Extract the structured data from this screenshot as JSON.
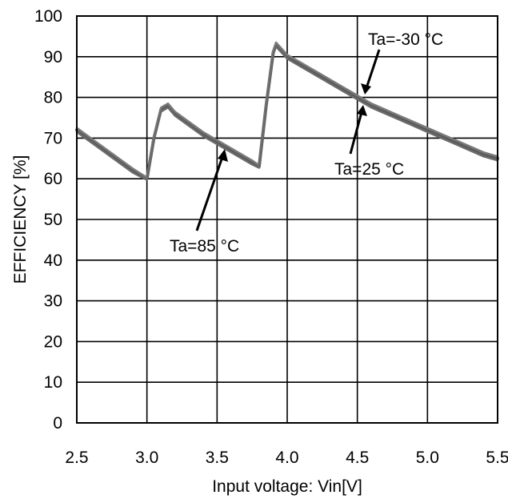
{
  "chart_data": {
    "type": "line",
    "title": "",
    "xlabel": "Input voltage: Vin[V]",
    "ylabel": "EFFICIENCY [%]",
    "xlim": [
      2.5,
      5.5
    ],
    "ylim": [
      0,
      100
    ],
    "xticks": [
      "2.5",
      "3.0",
      "3.5",
      "4.0",
      "4.5",
      "5.0",
      "5.5"
    ],
    "yticks": [
      "0",
      "10",
      "20",
      "30",
      "40",
      "50",
      "60",
      "70",
      "80",
      "90",
      "100"
    ],
    "grid": true,
    "line_color": "#6b6b6b",
    "series": [
      {
        "name": "Ta=-30 °C",
        "x": [
          2.5,
          2.7,
          2.9,
          3.0,
          3.05,
          3.1,
          3.15,
          3.2,
          3.4,
          3.6,
          3.75,
          3.8,
          3.85,
          3.9,
          3.92,
          4.0,
          4.2,
          4.4,
          4.6,
          4.8,
          5.0,
          5.2,
          5.4,
          5.5
        ],
        "y": [
          72,
          67,
          62,
          60,
          70,
          77,
          78,
          76,
          71,
          67,
          64,
          63,
          78,
          91,
          93,
          90,
          86,
          82,
          78,
          75,
          72,
          69,
          66,
          65
        ]
      },
      {
        "name": "Ta=25 °C",
        "x": [
          2.5,
          2.7,
          2.9,
          3.0,
          3.05,
          3.1,
          3.15,
          3.2,
          3.4,
          3.6,
          3.75,
          3.8,
          3.85,
          3.9,
          3.92,
          4.0,
          4.2,
          4.4,
          4.6,
          4.8,
          5.0,
          5.2,
          5.4,
          5.5
        ],
        "y": [
          72.5,
          67.5,
          62.5,
          60.3,
          70.5,
          77.5,
          78.5,
          76.5,
          71.5,
          67.5,
          64.5,
          63.3,
          78.5,
          91.5,
          93.5,
          90.5,
          86.5,
          82.5,
          78.5,
          75.5,
          72.5,
          69.5,
          66.5,
          65.5
        ]
      },
      {
        "name": "Ta=85 °C",
        "x": [
          2.5,
          2.7,
          2.9,
          3.0,
          3.05,
          3.1,
          3.15,
          3.2,
          3.4,
          3.6,
          3.75,
          3.8,
          3.85,
          3.9,
          3.92,
          4.0,
          4.2,
          4.4,
          4.6,
          4.8,
          5.0,
          5.2,
          5.4,
          5.5
        ],
        "y": [
          71.5,
          66.5,
          61.5,
          59.7,
          69.5,
          76.5,
          77.5,
          75.5,
          70.5,
          66.5,
          63.5,
          62.7,
          77.5,
          90.5,
          92.5,
          89.5,
          85.5,
          81.5,
          77.5,
          74.5,
          71.5,
          68.5,
          65.5,
          64.5
        ]
      }
    ],
    "annotations": [
      {
        "text": "Ta=-30 °C",
        "arrow_to": [
          4.55,
          80
        ]
      },
      {
        "text": "Ta=25 °C",
        "arrow_to": [
          4.57,
          78
        ]
      },
      {
        "text": "Ta=85 °C",
        "arrow_to": [
          3.6,
          66
        ]
      }
    ]
  }
}
